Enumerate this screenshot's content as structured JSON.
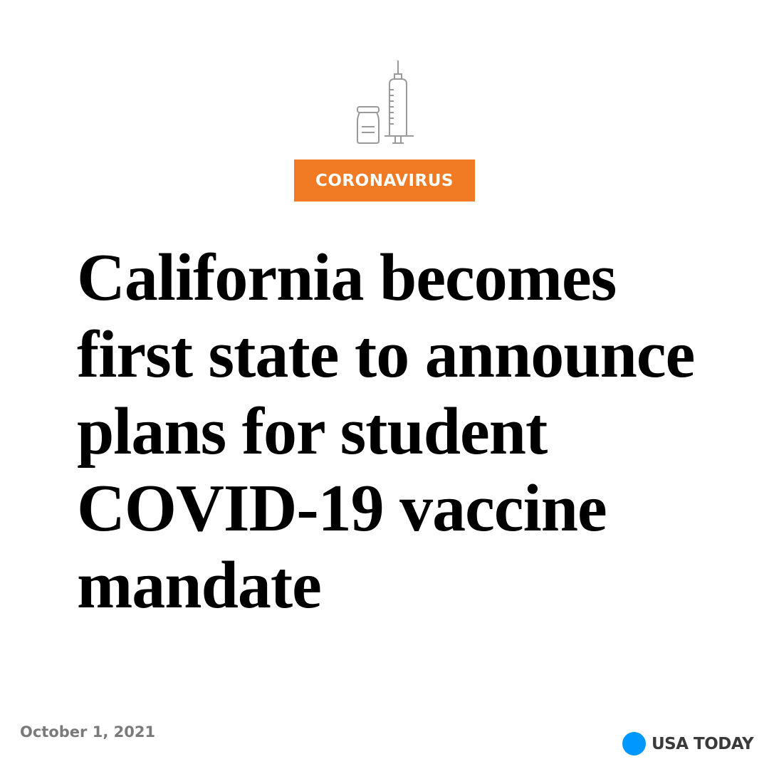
{
  "icon": {
    "name": "vaccine-vial-syringe-icon",
    "color": "#9a9a9a"
  },
  "category": {
    "label": "CORONAVIRUS",
    "color": "#f07b24"
  },
  "headline": {
    "text": "California becomes first state to announce plans for student COVID-19 vaccine mandate"
  },
  "footer": {
    "date": "October 1, 2021"
  },
  "brand": {
    "name": "USA TODAY",
    "dot_color": "#0098fe"
  }
}
